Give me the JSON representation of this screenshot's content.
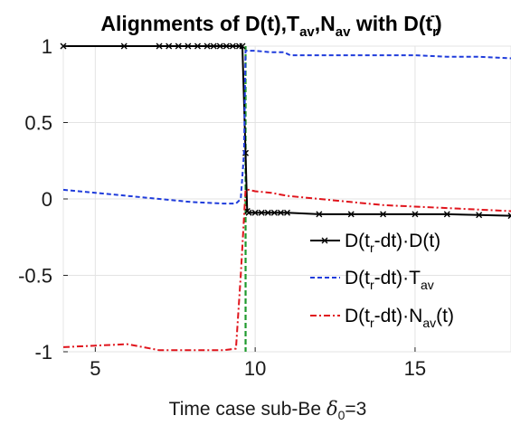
{
  "chart_data": {
    "type": "line",
    "title": {
      "main": "Alignments of D(t),T",
      "sub1": "av",
      "mid1": ",N",
      "sub2": "av",
      "mid2": " with D(t",
      "sub3": "r",
      "sup3": "-",
      "end": ")"
    },
    "xlabel": {
      "text": "Time   case sub-Be ",
      "symbol": "δ",
      "symbol_sub": "0",
      "suffix": "=3"
    },
    "xlim": [
      4,
      18
    ],
    "ylim": [
      -1,
      1
    ],
    "xticks": [
      5,
      10,
      15
    ],
    "yticks": [
      1,
      0.5,
      0,
      -0.5,
      -1
    ],
    "ytick_labels": [
      "1",
      "0.5",
      "0",
      "-0.5",
      "-1"
    ],
    "xtick_labels": [
      "5",
      "10",
      "15"
    ],
    "grid": true,
    "legend_position": "lower-right",
    "vline": {
      "x": 9.7,
      "color": "#1f9a2e"
    },
    "series": [
      {
        "name": "D(t_r-dt)·D(t)",
        "color": "#000000",
        "style": "solid-x",
        "x": [
          4.0,
          5.9,
          7.0,
          7.3,
          7.6,
          7.9,
          8.2,
          8.5,
          8.7,
          8.9,
          9.1,
          9.3,
          9.5,
          9.6,
          9.7,
          9.75,
          9.8,
          10.0,
          10.2,
          10.4,
          10.6,
          10.8,
          11.0,
          12.0,
          13.0,
          14.0,
          15.0,
          16.0,
          17.0,
          18.0
        ],
        "y": [
          1.0,
          1.0,
          1.0,
          1.0,
          1.0,
          1.0,
          1.0,
          1.0,
          1.0,
          1.0,
          1.0,
          1.0,
          1.0,
          1.0,
          0.3,
          -0.08,
          -0.09,
          -0.09,
          -0.09,
          -0.09,
          -0.09,
          -0.09,
          -0.09,
          -0.1,
          -0.1,
          -0.1,
          -0.1,
          -0.1,
          -0.105,
          -0.11
        ]
      },
      {
        "name": "D(t_r-dt)·T_av",
        "color": "#1f3cdb",
        "style": "dashed",
        "x": [
          4.0,
          5.0,
          6.0,
          7.0,
          8.0,
          9.0,
          9.4,
          9.55,
          9.65,
          9.7,
          9.8,
          10.0,
          10.5,
          10.9,
          11.1,
          12.0,
          13.0,
          14.0,
          15.0,
          16.0,
          17.0,
          18.0
        ],
        "y": [
          0.06,
          0.04,
          0.02,
          0.0,
          -0.02,
          -0.03,
          -0.03,
          0.0,
          0.3,
          0.97,
          0.97,
          0.97,
          0.96,
          0.96,
          0.94,
          0.94,
          0.94,
          0.94,
          0.94,
          0.93,
          0.93,
          0.92
        ]
      },
      {
        "name": "D(t_r-dt)·N_av(t)",
        "color": "#e0141c",
        "style": "dashdot",
        "x": [
          4.0,
          5.0,
          6.0,
          6.5,
          7.0,
          7.5,
          8.0,
          8.5,
          9.0,
          9.4,
          9.55,
          9.7,
          9.8,
          10.0,
          10.5,
          11.0,
          12.0,
          13.0,
          14.0,
          15.0,
          16.0,
          17.0,
          18.0
        ],
        "y": [
          -0.97,
          -0.96,
          -0.95,
          -0.97,
          -0.99,
          -0.99,
          -0.99,
          -0.99,
          -0.99,
          -0.98,
          -0.5,
          0.06,
          0.06,
          0.05,
          0.04,
          0.02,
          0.0,
          -0.02,
          -0.04,
          -0.05,
          -0.06,
          -0.07,
          -0.08
        ]
      }
    ],
    "legend": [
      {
        "prefix": "D(t",
        "sub": "r",
        "mid": "-dt)·",
        "tail": "D(t)",
        "tail_sub": "",
        "end": ""
      },
      {
        "prefix": "D(t",
        "sub": "r",
        "mid": "-dt)·",
        "tail": "T",
        "tail_sub": "av",
        "end": ""
      },
      {
        "prefix": "D(t",
        "sub": "r",
        "mid": "-dt)·",
        "tail": "N",
        "tail_sub": "av",
        "end": "(t)"
      }
    ]
  }
}
